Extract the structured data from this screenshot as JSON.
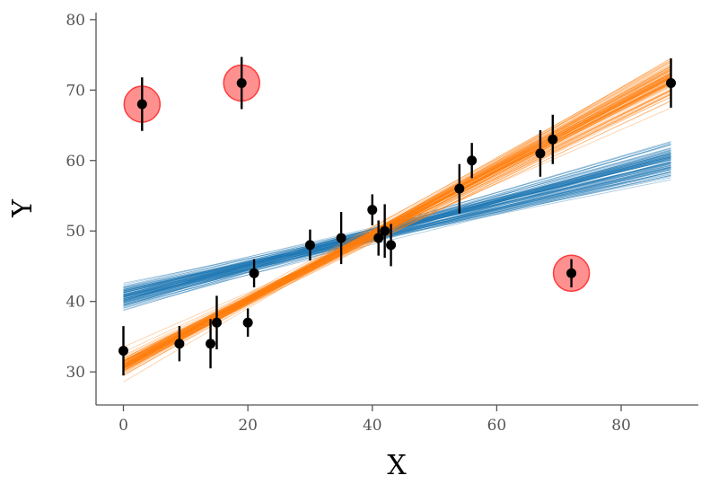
{
  "chart_data": {
    "type": "scatter",
    "title": "",
    "xlabel": "X",
    "ylabel": "Y",
    "xlim": [
      -4.4,
      92.4
    ],
    "ylim": [
      25.3,
      81.0
    ],
    "xticks": [
      0,
      20,
      40,
      60,
      80
    ],
    "yticks": [
      30,
      40,
      50,
      60,
      70,
      80
    ],
    "xtick_labels": [
      "0",
      "20",
      "40",
      "60",
      "80"
    ],
    "ytick_labels": [
      "30",
      "40",
      "50",
      "60",
      "70",
      "80"
    ],
    "grid": false,
    "legend": "none",
    "points": [
      {
        "x": 0,
        "y": 33,
        "yerr": 3.5
      },
      {
        "x": 3,
        "y": 68,
        "yerr": 3.8,
        "outlier": true
      },
      {
        "x": 9,
        "y": 34,
        "yerr": 2.5
      },
      {
        "x": 14,
        "y": 34,
        "yerr": 3.5
      },
      {
        "x": 15,
        "y": 37,
        "yerr": 3.8
      },
      {
        "x": 19,
        "y": 71,
        "yerr": 3.7,
        "outlier": true
      },
      {
        "x": 20,
        "y": 37,
        "yerr": 2.0
      },
      {
        "x": 21,
        "y": 44,
        "yerr": 2.0
      },
      {
        "x": 30,
        "y": 48,
        "yerr": 2.2
      },
      {
        "x": 35,
        "y": 49,
        "yerr": 3.7
      },
      {
        "x": 40,
        "y": 53,
        "yerr": 2.2
      },
      {
        "x": 41,
        "y": 49,
        "yerr": 2.5
      },
      {
        "x": 42,
        "y": 50,
        "yerr": 3.8
      },
      {
        "x": 43,
        "y": 48,
        "yerr": 3.0
      },
      {
        "x": 54,
        "y": 56,
        "yerr": 3.5
      },
      {
        "x": 56,
        "y": 60,
        "yerr": 2.5
      },
      {
        "x": 67,
        "y": 61,
        "yerr": 3.3
      },
      {
        "x": 69,
        "y": 63,
        "yerr": 3.5
      },
      {
        "x": 72,
        "y": 44,
        "yerr": 2.0,
        "outlier": true
      },
      {
        "x": 88,
        "y": 71,
        "yerr": 3.5
      }
    ],
    "fit_bundles": [
      {
        "color": "#1f77b4",
        "x_range": [
          0,
          88
        ],
        "intercept": 40.5,
        "slope": 0.222,
        "spread_intercept": 1.2,
        "spread_slope": 0.022,
        "lines": 100
      },
      {
        "color": "#ff7f0e",
        "x_range": [
          0,
          88
        ],
        "intercept": 31.0,
        "slope": 0.462,
        "spread_intercept": 1.0,
        "spread_slope": 0.022,
        "lines": 100
      }
    ],
    "colors": {
      "points": "#000000",
      "outlier_fill": "#ff6b6b",
      "outlier_edge": "#ff3b3b",
      "axis": "#555555"
    }
  }
}
